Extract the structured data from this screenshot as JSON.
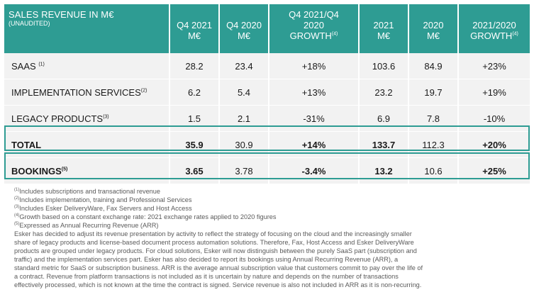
{
  "header": {
    "title": "SALES REVENUE IN M€",
    "subtitle": "(UNAUDITED)",
    "cols": [
      {
        "l1": "Q4 2021",
        "l2": "M€",
        "sup": ""
      },
      {
        "l1": "Q4 2020",
        "l2": "M€",
        "sup": ""
      },
      {
        "l1": "Q4 2021/Q4",
        "l2": "2020",
        "l3": "GROWTH",
        "sup": "(4)"
      },
      {
        "l1": "2021",
        "l2": "M€",
        "sup": ""
      },
      {
        "l1": "2020",
        "l2": "M€",
        "sup": ""
      },
      {
        "l1": "2021/2020",
        "l2": "GROWTH",
        "sup": "(4)"
      }
    ]
  },
  "rows": [
    {
      "label": "SAAS",
      "sup": "(1)",
      "values": [
        "28.2",
        "23.4",
        "+18%",
        "103.6",
        "84.9",
        "+23%"
      ]
    },
    {
      "label": "IMPLEMENTATION SERVICES",
      "sup": "(2)",
      "values": [
        "6.2",
        "5.4",
        "+13%",
        "23.2",
        "19.7",
        "+19%"
      ]
    },
    {
      "label": "LEGACY PRODUCTS",
      "sup": "(3)",
      "values": [
        "1.5",
        "2.1",
        "-31%",
        "6.9",
        "7.8",
        "-10%"
      ]
    },
    {
      "label": "TOTAL",
      "sup": "",
      "values": [
        "35.9",
        "30.9",
        "+14%",
        "133.7",
        "112.3",
        "+20%"
      ]
    },
    {
      "label": "BOOKINGS",
      "sup": "(5)",
      "values": [
        "3.65",
        "3.78",
        "-3.4%",
        "13.2",
        "10.6",
        "+25%"
      ]
    }
  ],
  "footnotes": [
    {
      "sup": "(1)",
      "text": "Includes subscriptions and transactional revenue"
    },
    {
      "sup": "(2)",
      "text": "Includes implementation, training and Professional Services"
    },
    {
      "sup": "(3)",
      "text": "Includes Esker DeliveryWare, Fax Servers and Host Access"
    },
    {
      "sup": "(4)",
      "text": "Growth based on a constant exchange rate: 2021 exchange rates applied to 2020 figures"
    },
    {
      "sup": "(5)",
      "text": "Expressed as Annual Recurring Revenue (ARR)"
    }
  ],
  "paragraph": [
    "Esker has decided to adjust its revenue presentation by activity to reflect the strategy of focusing on the cloud and the increasingly smaller",
    "share of legacy products and license-based document process automation solutions. Therefore, Fax, Host Access and Esker DeliveryWare",
    "products are grouped under legacy products. For cloud solutions, Esker will now distinguish between the purely SaaS part (subscription and",
    "traffic) and the implementation services part. Esker has also decided to report its bookings using Annual Recurring Revenue (ARR), a",
    "standard metric for SaaS or subscription business. ARR is the average annual subscription value that customers commit to pay over the life of",
    "a contract. Revenue from platform transactions is not included as it is uncertain by nature and depends on the number of transactions",
    "effectively processed, which is not known at the time the contract is signed. Service revenue is also not included in ARR as it is non-recurring."
  ]
}
